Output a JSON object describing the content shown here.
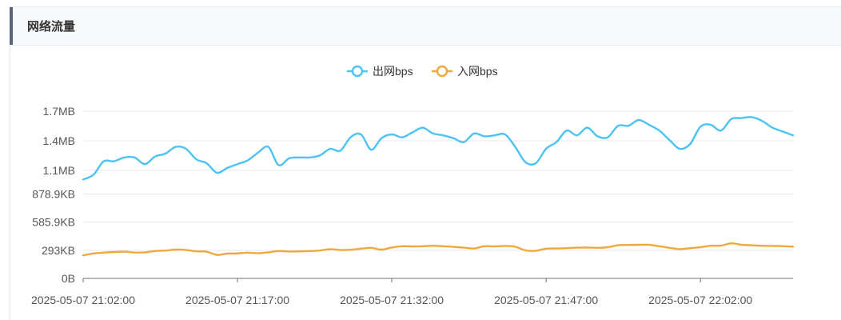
{
  "panel": {
    "title": "网络流量"
  },
  "chart_data": {
    "type": "line",
    "title": "",
    "xlabel": "",
    "ylabel": "",
    "legend_position": "top-center",
    "grid": true,
    "y_ticks": [
      "0B",
      "293KB",
      "585.9KB",
      "878.9KB",
      "1.1MB",
      "1.4MB",
      "1.7MB"
    ],
    "x_ticks": [
      "2025-05-07 21:02:00",
      "2025-05-07 21:17:00",
      "2025-05-07 21:32:00",
      "2025-05-07 21:47:00",
      "2025-05-07 22:02:00"
    ],
    "x_range": [
      "2025-05-07 21:02:00",
      "2025-05-07 22:11:00"
    ],
    "ylim_kb": [
      0,
      1800
    ],
    "series": [
      {
        "name": "出网bps",
        "color": "#4cc3f1",
        "points": [
          [
            "2025-05-07 21:02:00",
            1030
          ],
          [
            "2025-05-07 21:03:00",
            1080
          ],
          [
            "2025-05-07 21:04:00",
            1220
          ],
          [
            "2025-05-07 21:05:00",
            1220
          ],
          [
            "2025-05-07 21:06:00",
            1260
          ],
          [
            "2025-05-07 21:07:00",
            1260
          ],
          [
            "2025-05-07 21:08:00",
            1190
          ],
          [
            "2025-05-07 21:09:00",
            1270
          ],
          [
            "2025-05-07 21:10:00",
            1300
          ],
          [
            "2025-05-07 21:11:00",
            1370
          ],
          [
            "2025-05-07 21:12:00",
            1350
          ],
          [
            "2025-05-07 21:13:00",
            1240
          ],
          [
            "2025-05-07 21:14:00",
            1200
          ],
          [
            "2025-05-07 21:15:00",
            1100
          ],
          [
            "2025-05-07 21:16:00",
            1150
          ],
          [
            "2025-05-07 21:17:00",
            1190
          ],
          [
            "2025-05-07 21:18:00",
            1230
          ],
          [
            "2025-05-07 21:19:00",
            1310
          ],
          [
            "2025-05-07 21:20:00",
            1370
          ],
          [
            "2025-05-07 21:21:00",
            1180
          ],
          [
            "2025-05-07 21:22:00",
            1250
          ],
          [
            "2025-05-07 21:23:00",
            1260
          ],
          [
            "2025-05-07 21:24:00",
            1260
          ],
          [
            "2025-05-07 21:25:00",
            1280
          ],
          [
            "2025-05-07 21:26:00",
            1350
          ],
          [
            "2025-05-07 21:27:00",
            1330
          ],
          [
            "2025-05-07 21:28:00",
            1470
          ],
          [
            "2025-05-07 21:29:00",
            1500
          ],
          [
            "2025-05-07 21:30:00",
            1340
          ],
          [
            "2025-05-07 21:31:00",
            1460
          ],
          [
            "2025-05-07 21:32:00",
            1500
          ],
          [
            "2025-05-07 21:33:00",
            1470
          ],
          [
            "2025-05-07 21:34:00",
            1520
          ],
          [
            "2025-05-07 21:35:00",
            1570
          ],
          [
            "2025-05-07 21:36:00",
            1510
          ],
          [
            "2025-05-07 21:37:00",
            1490
          ],
          [
            "2025-05-07 21:38:00",
            1460
          ],
          [
            "2025-05-07 21:39:00",
            1420
          ],
          [
            "2025-05-07 21:40:00",
            1510
          ],
          [
            "2025-05-07 21:41:00",
            1480
          ],
          [
            "2025-05-07 21:42:00",
            1490
          ],
          [
            "2025-05-07 21:43:00",
            1500
          ],
          [
            "2025-05-07 21:44:00",
            1370
          ],
          [
            "2025-05-07 21:45:00",
            1210
          ],
          [
            "2025-05-07 21:46:00",
            1200
          ],
          [
            "2025-05-07 21:47:00",
            1350
          ],
          [
            "2025-05-07 21:48:00",
            1420
          ],
          [
            "2025-05-07 21:49:00",
            1540
          ],
          [
            "2025-05-07 21:50:00",
            1490
          ],
          [
            "2025-05-07 21:51:00",
            1570
          ],
          [
            "2025-05-07 21:52:00",
            1480
          ],
          [
            "2025-05-07 21:53:00",
            1470
          ],
          [
            "2025-05-07 21:54:00",
            1590
          ],
          [
            "2025-05-07 21:55:00",
            1590
          ],
          [
            "2025-05-07 21:56:00",
            1650
          ],
          [
            "2025-05-07 21:57:00",
            1600
          ],
          [
            "2025-05-07 21:58:00",
            1540
          ],
          [
            "2025-05-07 21:59:00",
            1440
          ],
          [
            "2025-05-07 22:00:00",
            1350
          ],
          [
            "2025-05-07 22:01:00",
            1400
          ],
          [
            "2025-05-07 22:02:00",
            1580
          ],
          [
            "2025-05-07 22:03:00",
            1600
          ],
          [
            "2025-05-07 22:04:00",
            1540
          ],
          [
            "2025-05-07 22:05:00",
            1660
          ],
          [
            "2025-05-07 22:06:00",
            1670
          ],
          [
            "2025-05-07 22:07:00",
            1680
          ],
          [
            "2025-05-07 22:08:00",
            1640
          ],
          [
            "2025-05-07 22:09:00",
            1570
          ],
          [
            "2025-05-07 22:10:00",
            1530
          ],
          [
            "2025-05-07 22:11:00",
            1490
          ]
        ]
      },
      {
        "name": "入网bps",
        "color": "#f0a83a",
        "points": [
          [
            "2025-05-07 21:02:00",
            240
          ],
          [
            "2025-05-07 21:03:00",
            260
          ],
          [
            "2025-05-07 21:04:00",
            268
          ],
          [
            "2025-05-07 21:05:00",
            275
          ],
          [
            "2025-05-07 21:06:00",
            278
          ],
          [
            "2025-05-07 21:07:00",
            270
          ],
          [
            "2025-05-07 21:08:00",
            272
          ],
          [
            "2025-05-07 21:09:00",
            285
          ],
          [
            "2025-05-07 21:10:00",
            290
          ],
          [
            "2025-05-07 21:11:00",
            300
          ],
          [
            "2025-05-07 21:12:00",
            295
          ],
          [
            "2025-05-07 21:13:00",
            282
          ],
          [
            "2025-05-07 21:14:00",
            278
          ],
          [
            "2025-05-07 21:15:00",
            245
          ],
          [
            "2025-05-07 21:16:00",
            258
          ],
          [
            "2025-05-07 21:17:00",
            260
          ],
          [
            "2025-05-07 21:18:00",
            268
          ],
          [
            "2025-05-07 21:19:00",
            262
          ],
          [
            "2025-05-07 21:20:00",
            272
          ],
          [
            "2025-05-07 21:21:00",
            285
          ],
          [
            "2025-05-07 21:22:00",
            280
          ],
          [
            "2025-05-07 21:23:00",
            282
          ],
          [
            "2025-05-07 21:24:00",
            285
          ],
          [
            "2025-05-07 21:25:00",
            290
          ],
          [
            "2025-05-07 21:26:00",
            305
          ],
          [
            "2025-05-07 21:27:00",
            296
          ],
          [
            "2025-05-07 21:28:00",
            298
          ],
          [
            "2025-05-07 21:29:00",
            310
          ],
          [
            "2025-05-07 21:30:00",
            318
          ],
          [
            "2025-05-07 21:31:00",
            300
          ],
          [
            "2025-05-07 21:32:00",
            322
          ],
          [
            "2025-05-07 21:33:00",
            335
          ],
          [
            "2025-05-07 21:34:00",
            333
          ],
          [
            "2025-05-07 21:35:00",
            335
          ],
          [
            "2025-05-07 21:36:00",
            340
          ],
          [
            "2025-05-07 21:37:00",
            335
          ],
          [
            "2025-05-07 21:38:00",
            328
          ],
          [
            "2025-05-07 21:39:00",
            320
          ],
          [
            "2025-05-07 21:40:00",
            312
          ],
          [
            "2025-05-07 21:41:00",
            335
          ],
          [
            "2025-05-07 21:42:00",
            333
          ],
          [
            "2025-05-07 21:43:00",
            338
          ],
          [
            "2025-05-07 21:44:00",
            330
          ],
          [
            "2025-05-07 21:45:00",
            292
          ],
          [
            "2025-05-07 21:46:00",
            288
          ],
          [
            "2025-05-07 21:47:00",
            310
          ],
          [
            "2025-05-07 21:48:00",
            312
          ],
          [
            "2025-05-07 21:49:00",
            315
          ],
          [
            "2025-05-07 21:50:00",
            320
          ],
          [
            "2025-05-07 21:51:00",
            322
          ],
          [
            "2025-05-07 21:52:00",
            318
          ],
          [
            "2025-05-07 21:53:00",
            325
          ],
          [
            "2025-05-07 21:54:00",
            345
          ],
          [
            "2025-05-07 21:55:00",
            348
          ],
          [
            "2025-05-07 21:56:00",
            350
          ],
          [
            "2025-05-07 21:57:00",
            350
          ],
          [
            "2025-05-07 21:58:00",
            335
          ],
          [
            "2025-05-07 21:59:00",
            318
          ],
          [
            "2025-05-07 22:00:00",
            305
          ],
          [
            "2025-05-07 22:01:00",
            315
          ],
          [
            "2025-05-07 22:02:00",
            325
          ],
          [
            "2025-05-07 22:03:00",
            340
          ],
          [
            "2025-05-07 22:04:00",
            342
          ],
          [
            "2025-05-07 22:05:00",
            365
          ],
          [
            "2025-05-07 22:06:00",
            350
          ],
          [
            "2025-05-07 22:07:00",
            345
          ],
          [
            "2025-05-07 22:08:00",
            340
          ],
          [
            "2025-05-07 22:09:00",
            338
          ],
          [
            "2025-05-07 22:10:00",
            336
          ],
          [
            "2025-05-07 22:11:00",
            330
          ]
        ]
      }
    ]
  }
}
